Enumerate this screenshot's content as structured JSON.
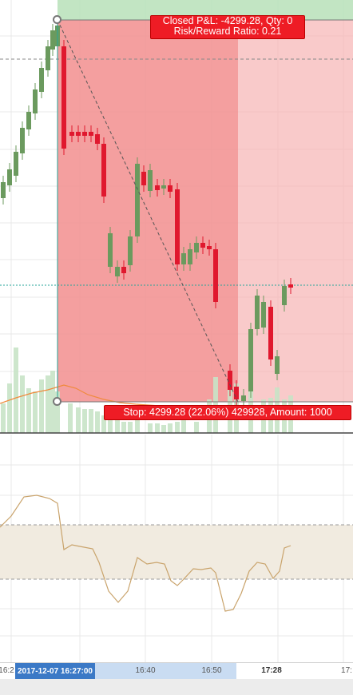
{
  "position_tool": {
    "closed_pl_text": "Closed P&L: -4299.28, Qty: 0",
    "risk_reward_text": "Risk/Reward Ratio: 0.21",
    "stop_text": "Stop: 4299.28 (22.06%) 429928, Amount: 1000",
    "badge_color": "#ee1c25",
    "loss_zone_color": "#f7a1a1",
    "profit_zone_color": "#b7e1b9"
  },
  "candle_colors": {
    "up": "#6b9a5e",
    "down": "#e0182e"
  },
  "time_axis": {
    "cursor_label": "2017-12-07 16:27:00",
    "ticks": [
      "16:2",
      "16:40",
      "16:50",
      "17:28",
      "17:"
    ]
  },
  "chart_data": {
    "type": "candlestick",
    "candles": [
      {
        "o": 0,
        "h": 0,
        "l": 0,
        "c": 0
      }
    ],
    "volume": [],
    "rsi": []
  }
}
